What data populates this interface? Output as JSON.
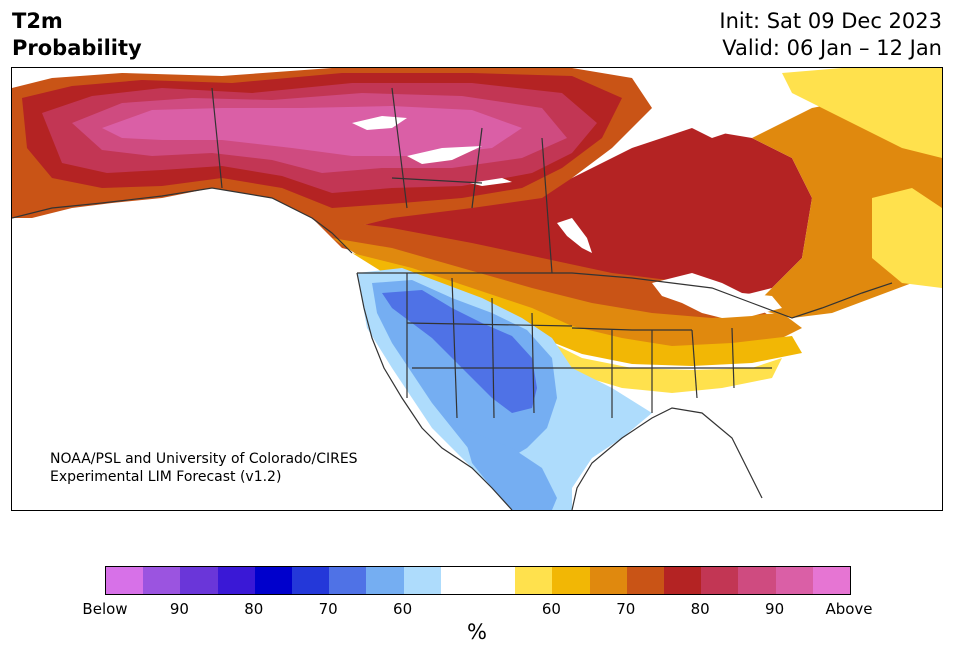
{
  "header": {
    "variable": "T2m",
    "product": "Probability",
    "init": "Init: Sat 09 Dec 2023",
    "valid": "Valid: 06 Jan – 12 Jan"
  },
  "map": {
    "region": "North America",
    "credit_line1": "NOAA/PSL and University of Colorado/CIRES",
    "credit_line2": "Experimental LIM Forecast (v1.2)"
  },
  "colorbar": {
    "unit": "%",
    "colors": [
      "#d771e8",
      "#9b54e0",
      "#6a36d9",
      "#3a18d6",
      "#0000cc",
      "#2438d9",
      "#4f72e6",
      "#75aef2",
      "#aedcfc",
      "#ffffff",
      "#ffffff",
      "#ffe14d",
      "#f2b705",
      "#e0890e",
      "#c95416",
      "#b42323",
      "#c23654",
      "#cf4b80",
      "#da5fa6",
      "#e675d3"
    ],
    "tick_labels": [
      "Below",
      "90",
      "80",
      "70",
      "60",
      "60",
      "70",
      "80",
      "90",
      "Above"
    ]
  }
}
